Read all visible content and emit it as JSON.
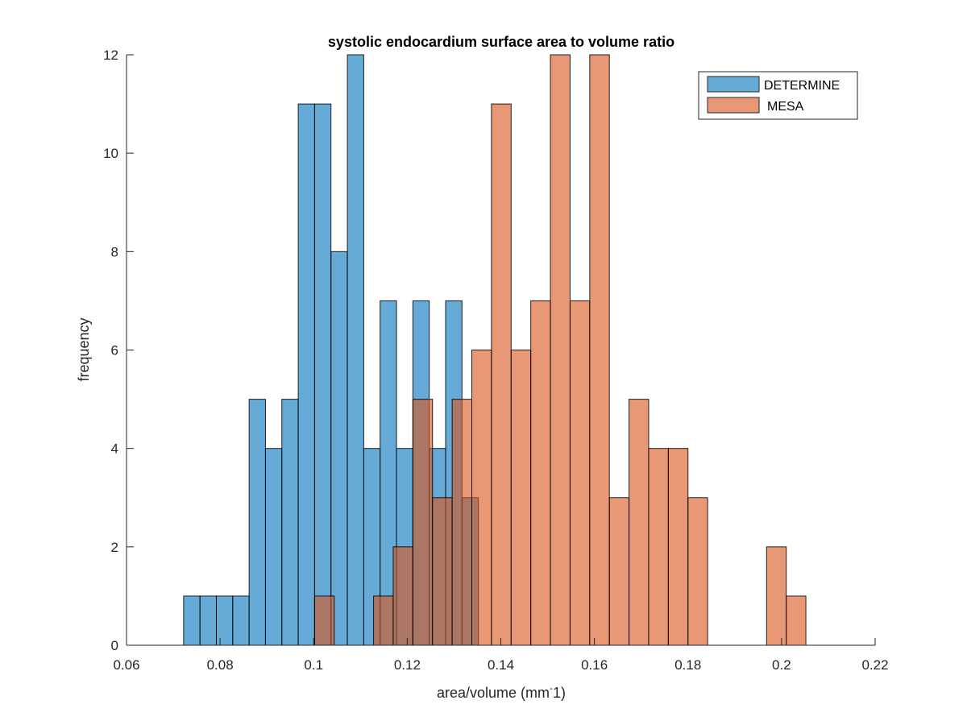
{
  "chart_data": {
    "type": "bar",
    "subtype": "overlapping-histogram",
    "title": "systolic endocardium surface area to volume ratio",
    "xlabel": "area/volume (mm",
    "xlabel_superscript": "-",
    "xlabel_suffix": "1)",
    "ylabel": "frequency",
    "xlim": [
      0.06,
      0.22
    ],
    "ylim": [
      0,
      12
    ],
    "xticks": [
      0.06,
      0.08,
      0.1,
      0.12,
      0.14,
      0.16,
      0.18,
      0.2,
      0.22
    ],
    "xtick_labels": [
      "0.06",
      "0.08",
      "0.1",
      "0.12",
      "0.14",
      "0.16",
      "0.18",
      "0.2",
      "0.22"
    ],
    "yticks": [
      0,
      2,
      4,
      6,
      8,
      10,
      12
    ],
    "ytick_labels": [
      "0",
      "2",
      "4",
      "6",
      "8",
      "10",
      "12"
    ],
    "grid": false,
    "legend_position": "top-right",
    "series": [
      {
        "name": "DETERMINE",
        "color": "#0072BD",
        "face_color": "#62A8D8",
        "alpha": 0.6,
        "bin_edges": [
          0.0722,
          0.0757,
          0.0792,
          0.0827,
          0.0862,
          0.0897,
          0.0932,
          0.0967,
          0.1002,
          0.1037,
          0.1072,
          0.1107,
          0.1142,
          0.1177,
          0.1212,
          0.1247,
          0.1282,
          0.1317,
          0.1352
        ],
        "values": [
          1,
          1,
          1,
          1,
          5,
          4,
          5,
          11,
          11,
          8,
          12,
          4,
          7,
          4,
          7,
          4,
          7,
          3
        ]
      },
      {
        "name": "MESA",
        "color": "#D95319",
        "face_color": "#E8977A",
        "alpha": 0.6,
        "bin_edges": [
          0.1002,
          0.1044,
          0.1086,
          0.1128,
          0.117,
          0.1212,
          0.1254,
          0.1296,
          0.1338,
          0.138,
          0.1422,
          0.1464,
          0.1506,
          0.1548,
          0.159,
          0.1632,
          0.1674,
          0.1716,
          0.1758,
          0.18,
          0.1842,
          0.1884,
          0.1926,
          0.1968,
          0.201,
          0.2052
        ],
        "values": [
          1,
          0,
          0,
          1,
          2,
          5,
          3,
          5,
          6,
          11,
          6,
          7,
          12,
          7,
          12,
          3,
          5,
          4,
          4,
          3,
          0,
          0,
          0,
          2,
          1
        ]
      }
    ],
    "legend": [
      "DETERMINE",
      "MESA"
    ]
  }
}
